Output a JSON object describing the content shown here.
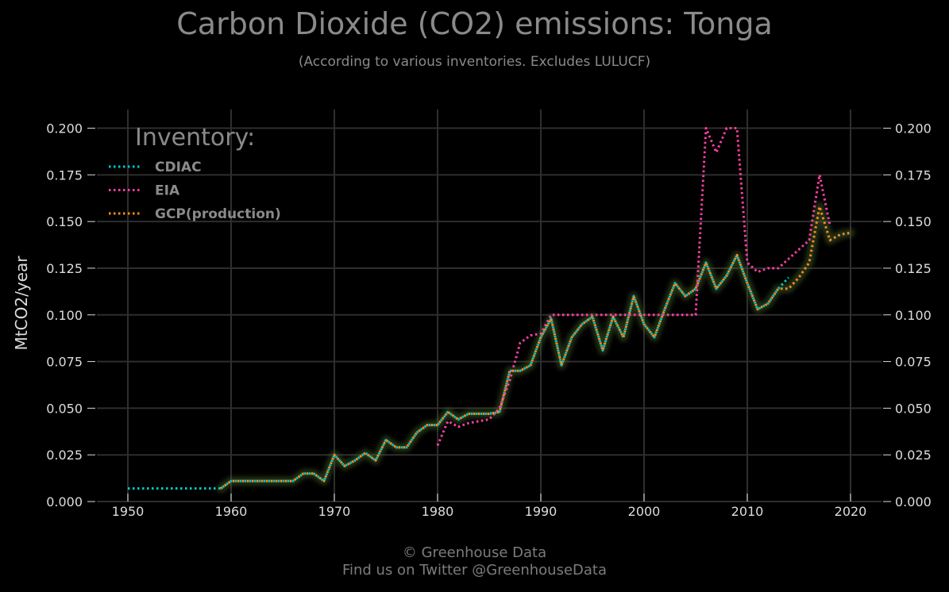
{
  "header": {
    "title": "Carbon Dioxide (CO2) emissions: Tonga",
    "subtitle": "(According to various inventories. Excludes LULUCF)"
  },
  "footer": {
    "line1": "© Greenhouse Data",
    "line2": "Find us on Twitter @GreenhouseData"
  },
  "chart_data": {
    "type": "line",
    "title": "Carbon Dioxide (CO2) emissions: Tonga",
    "subtitle": "(According to various inventories. Excludes LULUCF)",
    "xlabel": "",
    "ylabel": "MtCO2/year",
    "xlim": [
      1947,
      2023
    ],
    "ylim": [
      0,
      0.21
    ],
    "x_ticks": [
      1950,
      1960,
      1970,
      1980,
      1990,
      2000,
      2010,
      2020
    ],
    "y_ticks": [
      0.0,
      0.025,
      0.05,
      0.075,
      0.1,
      0.125,
      0.15,
      0.175,
      0.2
    ],
    "y_tick_labels": [
      "0.000",
      "0.025",
      "0.050",
      "0.075",
      "0.100",
      "0.125",
      "0.150",
      "0.175",
      "0.200"
    ],
    "y_axis_right_mirror": true,
    "grid": true,
    "legend": {
      "title": "Inventory:",
      "position": "top-left"
    },
    "series": [
      {
        "name": "CDIAC",
        "color": "#00c8c8",
        "x": [
          1950,
          1951,
          1952,
          1953,
          1954,
          1955,
          1956,
          1957,
          1958,
          1959,
          1960,
          1961,
          1962,
          1963,
          1964,
          1965,
          1966,
          1967,
          1968,
          1969,
          1970,
          1971,
          1972,
          1973,
          1974,
          1975,
          1976,
          1977,
          1978,
          1979,
          1980,
          1981,
          1982,
          1983,
          1984,
          1985,
          1986,
          1987,
          1988,
          1989,
          1990,
          1991,
          1992,
          1993,
          1994,
          1995,
          1996,
          1997,
          1998,
          1999,
          2000,
          2001,
          2002,
          2003,
          2004,
          2005,
          2006,
          2007,
          2008,
          2009,
          2010,
          2011,
          2012,
          2013,
          2014
        ],
        "y": [
          0.007,
          0.007,
          0.007,
          0.007,
          0.007,
          0.007,
          0.007,
          0.007,
          0.007,
          0.007,
          0.011,
          0.011,
          0.011,
          0.011,
          0.011,
          0.011,
          0.011,
          0.015,
          0.015,
          0.011,
          0.025,
          0.019,
          0.022,
          0.026,
          0.022,
          0.033,
          0.029,
          0.029,
          0.037,
          0.041,
          0.041,
          0.048,
          0.044,
          0.047,
          0.047,
          0.047,
          0.048,
          0.07,
          0.07,
          0.073,
          0.088,
          0.098,
          0.073,
          0.088,
          0.095,
          0.099,
          0.081,
          0.099,
          0.088,
          0.11,
          0.095,
          0.088,
          0.103,
          0.117,
          0.11,
          0.114,
          0.128,
          0.114,
          0.121,
          0.132,
          0.117,
          0.103,
          0.106,
          0.114,
          0.12
        ]
      },
      {
        "name": "EIA",
        "color": "#ff3fa4",
        "x": [
          1980,
          1981,
          1982,
          1983,
          1984,
          1985,
          1986,
          1987,
          1988,
          1989,
          1990,
          1991,
          1992,
          1993,
          1994,
          1995,
          1996,
          1997,
          1998,
          1999,
          2000,
          2001,
          2002,
          2003,
          2004,
          2005,
          2006,
          2007,
          2008,
          2009,
          2010,
          2011,
          2012,
          2013,
          2014,
          2015,
          2016,
          2017,
          2018
        ],
        "y": [
          0.03,
          0.043,
          0.04,
          0.042,
          0.043,
          0.044,
          0.05,
          0.065,
          0.085,
          0.089,
          0.09,
          0.1,
          0.1,
          0.1,
          0.1,
          0.1,
          0.1,
          0.1,
          0.1,
          0.1,
          0.1,
          0.1,
          0.1,
          0.1,
          0.1,
          0.1,
          0.2,
          0.187,
          0.2,
          0.2,
          0.128,
          0.123,
          0.125,
          0.125,
          0.13,
          0.135,
          0.14,
          0.175,
          0.148
        ]
      },
      {
        "name": "GCP(production)",
        "color": "#ff8c1a",
        "x": [
          1959,
          1960,
          1961,
          1962,
          1963,
          1964,
          1965,
          1966,
          1967,
          1968,
          1969,
          1970,
          1971,
          1972,
          1973,
          1974,
          1975,
          1976,
          1977,
          1978,
          1979,
          1980,
          1981,
          1982,
          1983,
          1984,
          1985,
          1986,
          1987,
          1988,
          1989,
          1990,
          1991,
          1992,
          1993,
          1994,
          1995,
          1996,
          1997,
          1998,
          1999,
          2000,
          2001,
          2002,
          2003,
          2004,
          2005,
          2006,
          2007,
          2008,
          2009,
          2010,
          2011,
          2012,
          2013,
          2014,
          2015,
          2016,
          2017,
          2018,
          2019,
          2020
        ],
        "y": [
          0.007,
          0.011,
          0.011,
          0.011,
          0.011,
          0.011,
          0.011,
          0.011,
          0.015,
          0.015,
          0.011,
          0.025,
          0.019,
          0.022,
          0.026,
          0.022,
          0.033,
          0.029,
          0.029,
          0.037,
          0.041,
          0.041,
          0.048,
          0.044,
          0.047,
          0.047,
          0.047,
          0.048,
          0.07,
          0.07,
          0.073,
          0.088,
          0.098,
          0.073,
          0.088,
          0.095,
          0.099,
          0.081,
          0.099,
          0.088,
          0.11,
          0.095,
          0.088,
          0.103,
          0.117,
          0.11,
          0.114,
          0.128,
          0.114,
          0.121,
          0.132,
          0.117,
          0.103,
          0.106,
          0.114,
          0.114,
          0.12,
          0.128,
          0.158,
          0.14,
          0.143,
          0.144
        ]
      }
    ]
  }
}
